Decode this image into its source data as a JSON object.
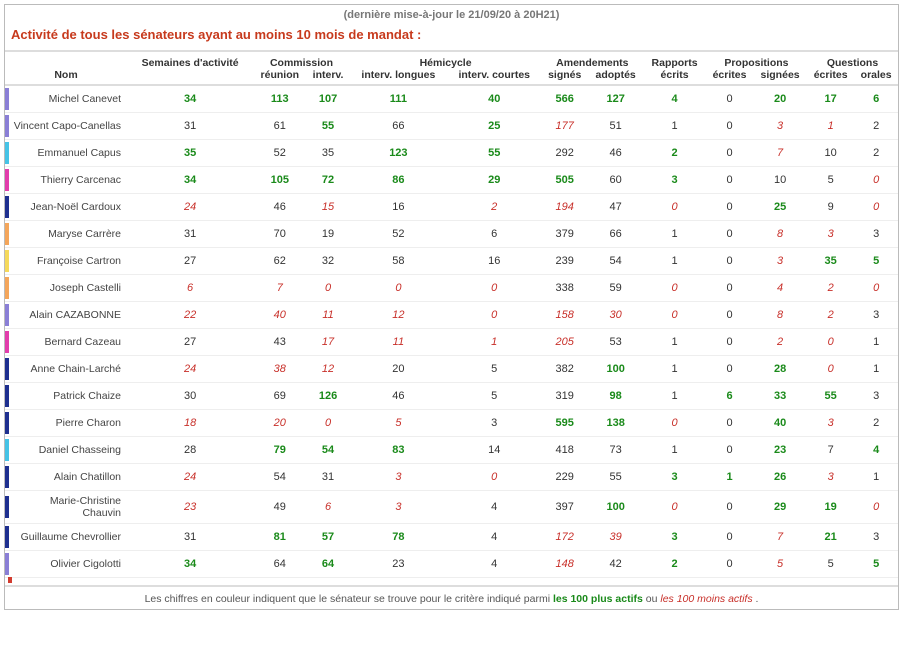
{
  "update_text": "(dernière mise-à-jour le 21/09/20 à 20H21)",
  "title": "Activité de tous les sénateurs ayant au moins 10 mois de mandat :",
  "headers": {
    "nom": "Nom",
    "semaines": "Semaines d'activité",
    "commission": "Commission",
    "hemicycle": "Hémicycle",
    "amendements": "Amendements",
    "rapports": "Rapports",
    "propositions": "Propositions",
    "questions": "Questions",
    "reunion": "réunion",
    "interv": "interv.",
    "interv_long": "interv. longues",
    "interv_court": "interv. courtes",
    "signes": "signés",
    "adoptes": "adoptés",
    "ecrits": "écrits",
    "ecrites": "écrites",
    "signees": "signées",
    "orales": "orales"
  },
  "colors": {
    "text_hi": "#1a8a1a",
    "text_lo": "#c8302a",
    "purple": "#8a7fd6",
    "cyan": "#46c3e6",
    "magenta": "#e23dac",
    "navy": "#1e2f8f",
    "orange": "#f4a65b",
    "yellow": "#f5d95b",
    "red": "#d23b2f"
  },
  "rows": [
    {
      "bar": "#8a7fd6",
      "name": "Michel Canevet",
      "cells": [
        [
          "34",
          "hi"
        ],
        [
          "113",
          "hi"
        ],
        [
          "107",
          "hi"
        ],
        [
          "111",
          "hi"
        ],
        [
          "40",
          "hi"
        ],
        [
          "566",
          "hi"
        ],
        [
          "127",
          "hi"
        ],
        [
          "4",
          "hi"
        ],
        [
          "0",
          ""
        ],
        [
          "20",
          "hi"
        ],
        [
          "17",
          "hi"
        ],
        [
          "6",
          "hi"
        ]
      ]
    },
    {
      "bar": "#8a7fd6",
      "name": "Vincent Capo-Canellas",
      "cells": [
        [
          "31",
          ""
        ],
        [
          "61",
          ""
        ],
        [
          "55",
          "hi"
        ],
        [
          "66",
          ""
        ],
        [
          "25",
          "hi"
        ],
        [
          "177",
          "lo"
        ],
        [
          "51",
          ""
        ],
        [
          "1",
          ""
        ],
        [
          "0",
          ""
        ],
        [
          "3",
          "lo"
        ],
        [
          "1",
          "lo"
        ],
        [
          "2",
          ""
        ]
      ]
    },
    {
      "bar": "#46c3e6",
      "name": "Emmanuel Capus",
      "cells": [
        [
          "35",
          "hi"
        ],
        [
          "52",
          ""
        ],
        [
          "35",
          ""
        ],
        [
          "123",
          "hi"
        ],
        [
          "55",
          "hi"
        ],
        [
          "292",
          ""
        ],
        [
          "46",
          ""
        ],
        [
          "2",
          "hi"
        ],
        [
          "0",
          ""
        ],
        [
          "7",
          "lo"
        ],
        [
          "10",
          ""
        ],
        [
          "2",
          ""
        ]
      ]
    },
    {
      "bar": "#e23dac",
      "name": "Thierry Carcenac",
      "cells": [
        [
          "34",
          "hi"
        ],
        [
          "105",
          "hi"
        ],
        [
          "72",
          "hi"
        ],
        [
          "86",
          "hi"
        ],
        [
          "29",
          "hi"
        ],
        [
          "505",
          "hi"
        ],
        [
          "60",
          ""
        ],
        [
          "3",
          "hi"
        ],
        [
          "0",
          ""
        ],
        [
          "10",
          ""
        ],
        [
          "5",
          ""
        ],
        [
          "0",
          "lo"
        ]
      ]
    },
    {
      "bar": "#1e2f8f",
      "name": "Jean-Noël Cardoux",
      "cells": [
        [
          "24",
          "lo"
        ],
        [
          "46",
          ""
        ],
        [
          "15",
          "lo"
        ],
        [
          "16",
          ""
        ],
        [
          "2",
          "lo"
        ],
        [
          "194",
          "lo"
        ],
        [
          "47",
          ""
        ],
        [
          "0",
          "lo"
        ],
        [
          "0",
          ""
        ],
        [
          "25",
          "hi"
        ],
        [
          "9",
          ""
        ],
        [
          "0",
          "lo"
        ]
      ]
    },
    {
      "bar": "#f4a65b",
      "name": "Maryse Carrère",
      "cells": [
        [
          "31",
          ""
        ],
        [
          "70",
          ""
        ],
        [
          "19",
          ""
        ],
        [
          "52",
          ""
        ],
        [
          "6",
          ""
        ],
        [
          "379",
          ""
        ],
        [
          "66",
          ""
        ],
        [
          "1",
          ""
        ],
        [
          "0",
          ""
        ],
        [
          "8",
          "lo"
        ],
        [
          "3",
          "lo"
        ],
        [
          "3",
          ""
        ]
      ]
    },
    {
      "bar": "#f5d95b",
      "name": "Françoise Cartron",
      "cells": [
        [
          "27",
          ""
        ],
        [
          "62",
          ""
        ],
        [
          "32",
          ""
        ],
        [
          "58",
          ""
        ],
        [
          "16",
          ""
        ],
        [
          "239",
          ""
        ],
        [
          "54",
          ""
        ],
        [
          "1",
          ""
        ],
        [
          "0",
          ""
        ],
        [
          "3",
          "lo"
        ],
        [
          "35",
          "hi"
        ],
        [
          "5",
          "hi"
        ]
      ]
    },
    {
      "bar": "#f4a65b",
      "name": "Joseph Castelli",
      "cells": [
        [
          "6",
          "lo"
        ],
        [
          "7",
          "lo"
        ],
        [
          "0",
          "lo"
        ],
        [
          "0",
          "lo"
        ],
        [
          "0",
          "lo"
        ],
        [
          "338",
          ""
        ],
        [
          "59",
          ""
        ],
        [
          "0",
          "lo"
        ],
        [
          "0",
          ""
        ],
        [
          "4",
          "lo"
        ],
        [
          "2",
          "lo"
        ],
        [
          "0",
          "lo"
        ]
      ]
    },
    {
      "bar": "#8a7fd6",
      "name": "Alain CAZABONNE",
      "cells": [
        [
          "22",
          "lo"
        ],
        [
          "40",
          "lo"
        ],
        [
          "11",
          "lo"
        ],
        [
          "12",
          "lo"
        ],
        [
          "0",
          "lo"
        ],
        [
          "158",
          "lo"
        ],
        [
          "30",
          "lo"
        ],
        [
          "0",
          "lo"
        ],
        [
          "0",
          ""
        ],
        [
          "8",
          "lo"
        ],
        [
          "2",
          "lo"
        ],
        [
          "3",
          ""
        ]
      ]
    },
    {
      "bar": "#e23dac",
      "name": "Bernard Cazeau",
      "cells": [
        [
          "27",
          ""
        ],
        [
          "43",
          ""
        ],
        [
          "17",
          "lo"
        ],
        [
          "11",
          "lo"
        ],
        [
          "1",
          "lo"
        ],
        [
          "205",
          "lo"
        ],
        [
          "53",
          ""
        ],
        [
          "1",
          ""
        ],
        [
          "0",
          ""
        ],
        [
          "2",
          "lo"
        ],
        [
          "0",
          "lo"
        ],
        [
          "1",
          ""
        ]
      ]
    },
    {
      "bar": "#1e2f8f",
      "name": "Anne Chain-Larché",
      "cells": [
        [
          "24",
          "lo"
        ],
        [
          "38",
          "lo"
        ],
        [
          "12",
          "lo"
        ],
        [
          "20",
          ""
        ],
        [
          "5",
          ""
        ],
        [
          "382",
          ""
        ],
        [
          "100",
          "hi"
        ],
        [
          "1",
          ""
        ],
        [
          "0",
          ""
        ],
        [
          "28",
          "hi"
        ],
        [
          "0",
          "lo"
        ],
        [
          "1",
          ""
        ]
      ]
    },
    {
      "bar": "#1e2f8f",
      "name": "Patrick Chaize",
      "cells": [
        [
          "30",
          ""
        ],
        [
          "69",
          ""
        ],
        [
          "126",
          "hi"
        ],
        [
          "46",
          ""
        ],
        [
          "5",
          ""
        ],
        [
          "319",
          ""
        ],
        [
          "98",
          "hi"
        ],
        [
          "1",
          ""
        ],
        [
          "6",
          "hi"
        ],
        [
          "33",
          "hi"
        ],
        [
          "55",
          "hi"
        ],
        [
          "3",
          ""
        ]
      ]
    },
    {
      "bar": "#1e2f8f",
      "name": "Pierre Charon",
      "cells": [
        [
          "18",
          "lo"
        ],
        [
          "20",
          "lo"
        ],
        [
          "0",
          "lo"
        ],
        [
          "5",
          "lo"
        ],
        [
          "3",
          ""
        ],
        [
          "595",
          "hi"
        ],
        [
          "138",
          "hi"
        ],
        [
          "0",
          "lo"
        ],
        [
          "0",
          ""
        ],
        [
          "40",
          "hi"
        ],
        [
          "3",
          "lo"
        ],
        [
          "2",
          ""
        ]
      ]
    },
    {
      "bar": "#46c3e6",
      "name": "Daniel Chasseing",
      "cells": [
        [
          "28",
          ""
        ],
        [
          "79",
          "hi"
        ],
        [
          "54",
          "hi"
        ],
        [
          "83",
          "hi"
        ],
        [
          "14",
          ""
        ],
        [
          "418",
          ""
        ],
        [
          "73",
          ""
        ],
        [
          "1",
          ""
        ],
        [
          "0",
          ""
        ],
        [
          "23",
          "hi"
        ],
        [
          "7",
          ""
        ],
        [
          "4",
          "hi"
        ]
      ]
    },
    {
      "bar": "#1e2f8f",
      "name": "Alain Chatillon",
      "cells": [
        [
          "24",
          "lo"
        ],
        [
          "54",
          ""
        ],
        [
          "31",
          ""
        ],
        [
          "3",
          "lo"
        ],
        [
          "0",
          "lo"
        ],
        [
          "229",
          ""
        ],
        [
          "55",
          ""
        ],
        [
          "3",
          "hi"
        ],
        [
          "1",
          "hi"
        ],
        [
          "26",
          "hi"
        ],
        [
          "3",
          "lo"
        ],
        [
          "1",
          ""
        ]
      ]
    },
    {
      "bar": "#1e2f8f",
      "name": "Marie-Christine Chauvin",
      "cells": [
        [
          "23",
          "lo"
        ],
        [
          "49",
          ""
        ],
        [
          "6",
          "lo"
        ],
        [
          "3",
          "lo"
        ],
        [
          "4",
          ""
        ],
        [
          "397",
          ""
        ],
        [
          "100",
          "hi"
        ],
        [
          "0",
          "lo"
        ],
        [
          "0",
          ""
        ],
        [
          "29",
          "hi"
        ],
        [
          "19",
          "hi"
        ],
        [
          "0",
          "lo"
        ]
      ]
    },
    {
      "bar": "#1e2f8f",
      "name": "Guillaume Chevrollier",
      "cells": [
        [
          "31",
          ""
        ],
        [
          "81",
          "hi"
        ],
        [
          "57",
          "hi"
        ],
        [
          "78",
          "hi"
        ],
        [
          "4",
          ""
        ],
        [
          "172",
          "lo"
        ],
        [
          "39",
          "lo"
        ],
        [
          "3",
          "hi"
        ],
        [
          "0",
          ""
        ],
        [
          "7",
          "lo"
        ],
        [
          "21",
          "hi"
        ],
        [
          "3",
          ""
        ]
      ]
    },
    {
      "bar": "#8a7fd6",
      "name": "Olivier Cigolotti",
      "cells": [
        [
          "34",
          "hi"
        ],
        [
          "64",
          ""
        ],
        [
          "64",
          "hi"
        ],
        [
          "23",
          ""
        ],
        [
          "4",
          ""
        ],
        [
          "148",
          "lo"
        ],
        [
          "42",
          ""
        ],
        [
          "2",
          "hi"
        ],
        [
          "0",
          ""
        ],
        [
          "5",
          "lo"
        ],
        [
          "5",
          ""
        ],
        [
          "5",
          "hi"
        ]
      ]
    }
  ],
  "legend": {
    "pre": "Les chiffres en couleur indiquent que le sénateur se trouve pour le critère indiqué parmi ",
    "hi": "les 100 plus actifs",
    "mid": " ou ",
    "lo": "les 100 moins actifs",
    "post": "."
  }
}
